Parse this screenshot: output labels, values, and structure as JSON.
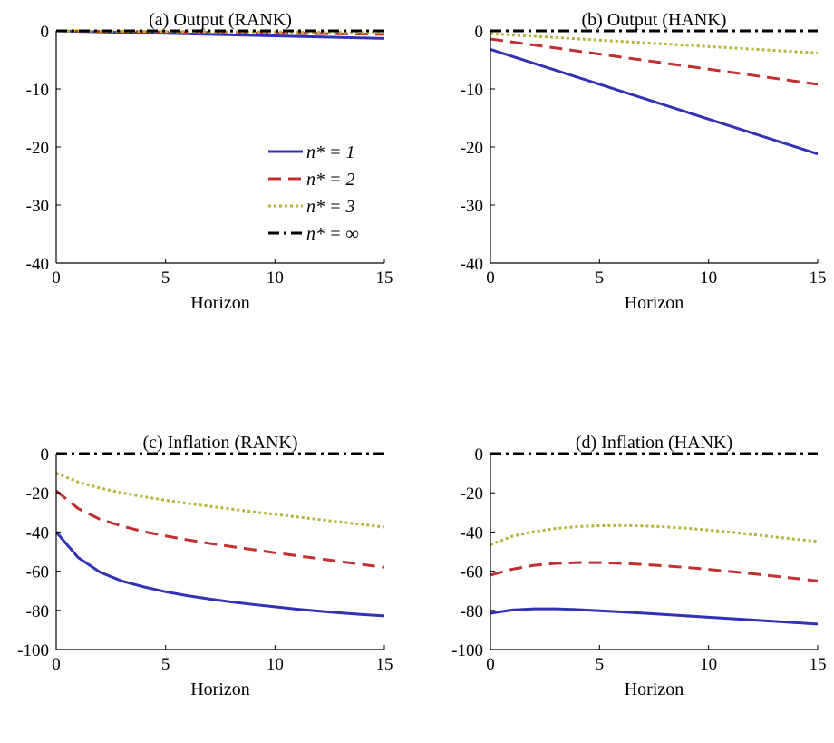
{
  "chart_data": [
    {
      "type": "line",
      "title": "(a) Output (RANK)",
      "xlabel": "Horizon",
      "ylabel": "",
      "xlim": [
        0,
        15
      ],
      "ylim": [
        -40,
        0
      ],
      "xticks": [
        0,
        5,
        10,
        15
      ],
      "yticks": [
        -40,
        -30,
        -20,
        -10,
        0
      ],
      "grid": false,
      "series": [
        {
          "name": "n* = 1",
          "key": "n1",
          "x": [
            0,
            15
          ],
          "values": [
            0,
            -1.3
          ]
        },
        {
          "name": "n* = 2",
          "key": "n2",
          "x": [
            0,
            15
          ],
          "values": [
            0,
            -0.6
          ]
        },
        {
          "name": "n* = 3",
          "key": "n3",
          "x": [
            0,
            15
          ],
          "values": [
            0,
            -0.3
          ]
        },
        {
          "name": "n* = ∞",
          "key": "ninf",
          "x": [
            0,
            15
          ],
          "values": [
            0,
            0
          ]
        }
      ],
      "legend": {
        "placement": "bottom-right"
      }
    },
    {
      "type": "line",
      "title": "(b) Output (HANK)",
      "xlabel": "Horizon",
      "ylabel": "",
      "xlim": [
        0,
        15
      ],
      "ylim": [
        -40,
        0
      ],
      "xticks": [
        0,
        5,
        10,
        15
      ],
      "yticks": [
        -40,
        -30,
        -20,
        -10,
        0
      ],
      "grid": false,
      "series": [
        {
          "name": "n* = 1",
          "key": "n1",
          "x": [
            0,
            15
          ],
          "values": [
            -3.2,
            -21.2
          ]
        },
        {
          "name": "n* = 2",
          "key": "n2",
          "x": [
            0,
            15
          ],
          "values": [
            -1.4,
            -9.2
          ]
        },
        {
          "name": "n* = 3",
          "key": "n3",
          "x": [
            0,
            15
          ],
          "values": [
            -0.5,
            -3.8
          ]
        },
        {
          "name": "n* = ∞",
          "key": "ninf",
          "x": [
            0,
            15
          ],
          "values": [
            0,
            0
          ]
        }
      ]
    },
    {
      "type": "line",
      "title": "(c) Inflation (RANK)",
      "xlabel": "Horizon",
      "ylabel": "",
      "xlim": [
        0,
        15
      ],
      "ylim": [
        -100,
        0
      ],
      "xticks": [
        0,
        5,
        10,
        15
      ],
      "yticks": [
        -100,
        -80,
        -60,
        -40,
        -20,
        0
      ],
      "grid": false,
      "series": [
        {
          "name": "n* = 1",
          "key": "n1",
          "x": [
            0,
            1,
            2,
            3,
            4,
            5,
            6,
            7,
            8,
            9,
            10,
            11,
            12,
            13,
            14,
            15
          ],
          "values": [
            -40,
            -53,
            -60.5,
            -65,
            -68,
            -70.5,
            -72.5,
            -74.2,
            -75.7,
            -77,
            -78.2,
            -79.4,
            -80.4,
            -81.3,
            -82.1,
            -82.8
          ]
        },
        {
          "name": "n* = 2",
          "key": "n2",
          "x": [
            0,
            1,
            2,
            3,
            4,
            5,
            6,
            7,
            8,
            9,
            10,
            11,
            12,
            13,
            14,
            15
          ],
          "values": [
            -19,
            -28,
            -33.5,
            -37,
            -39.8,
            -42,
            -44,
            -45.8,
            -47.4,
            -49,
            -50.6,
            -52.1,
            -53.6,
            -55.1,
            -56.6,
            -58
          ]
        },
        {
          "name": "n* = 3",
          "key": "n3",
          "x": [
            0,
            1,
            2,
            3,
            4,
            5,
            6,
            7,
            8,
            9,
            10,
            11,
            12,
            13,
            14,
            15
          ],
          "values": [
            -10,
            -14.5,
            -17.6,
            -20,
            -22,
            -23.8,
            -25.4,
            -26.9,
            -28.3,
            -29.7,
            -31,
            -32.3,
            -33.6,
            -34.9,
            -36.2,
            -37.5
          ]
        },
        {
          "name": "n* = ∞",
          "key": "ninf",
          "x": [
            0,
            15
          ],
          "values": [
            0,
            0
          ]
        }
      ]
    },
    {
      "type": "line",
      "title": "(d) Inflation (HANK)",
      "xlabel": "Horizon",
      "ylabel": "",
      "xlim": [
        0,
        15
      ],
      "ylim": [
        -100,
        0
      ],
      "xticks": [
        0,
        5,
        10,
        15
      ],
      "yticks": [
        -100,
        -80,
        -60,
        -40,
        -20,
        0
      ],
      "grid": false,
      "series": [
        {
          "name": "n* = 1",
          "key": "n1",
          "x": [
            0,
            1,
            2,
            3,
            4,
            5,
            6,
            7,
            8,
            9,
            10,
            11,
            12,
            13,
            14,
            15
          ],
          "values": [
            -81.5,
            -79.8,
            -79.2,
            -79.2,
            -79.6,
            -80.2,
            -80.8,
            -81.4,
            -82.1,
            -82.8,
            -83.5,
            -84.2,
            -84.9,
            -85.6,
            -86.3,
            -87
          ]
        },
        {
          "name": "n* = 2",
          "key": "n2",
          "x": [
            0,
            1,
            2,
            3,
            4,
            5,
            6,
            7,
            8,
            9,
            10,
            11,
            12,
            13,
            14,
            15
          ],
          "values": [
            -62,
            -59,
            -57,
            -56,
            -55.6,
            -55.6,
            -56,
            -56.6,
            -57.3,
            -58.1,
            -59.1,
            -60.2,
            -61.3,
            -62.5,
            -63.7,
            -65
          ]
        },
        {
          "name": "n* = 3",
          "key": "n3",
          "x": [
            0,
            1,
            2,
            3,
            4,
            5,
            6,
            7,
            8,
            9,
            10,
            11,
            12,
            13,
            14,
            15
          ],
          "values": [
            -46.5,
            -42.2,
            -39.8,
            -38.2,
            -37.3,
            -36.8,
            -36.7,
            -36.9,
            -37.4,
            -38.1,
            -39,
            -40.1,
            -41.3,
            -42.5,
            -43.7,
            -44.8
          ]
        },
        {
          "name": "n* = ∞",
          "key": "ninf",
          "x": [
            0,
            15
          ],
          "values": [
            0,
            0
          ]
        }
      ]
    }
  ],
  "styles": {
    "n1": {
      "color": "#3232b4",
      "dash": ""
    },
    "n2": {
      "color": "#bf3030",
      "dash": "14,8"
    },
    "n3": {
      "color": "#b4b43a",
      "dash": "3,3"
    },
    "ninf": {
      "color": "#000000",
      "dash": "12,5,3,5"
    }
  }
}
